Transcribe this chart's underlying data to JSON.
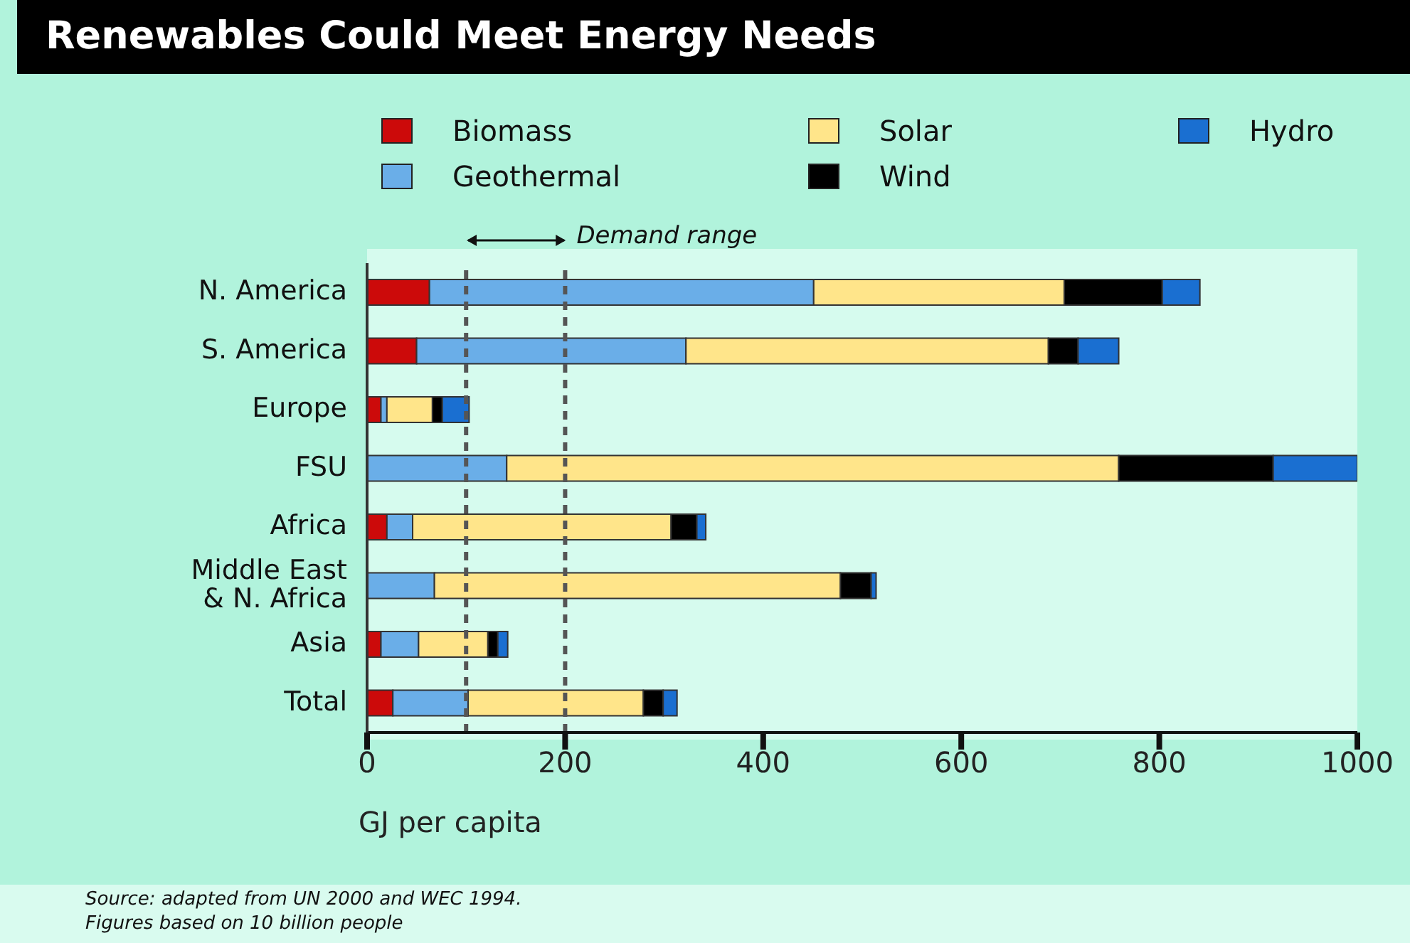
{
  "chart_data": {
    "type": "bar",
    "orientation": "horizontal",
    "stacked": true,
    "title": "Renewables Could Meet Energy Needs",
    "xlabel": "GJ per capita",
    "categories": [
      "N. America",
      "S. America",
      "Europe",
      "FSU",
      "Africa",
      "Middle East\n& N. Africa",
      "Asia",
      "Total"
    ],
    "series": [
      {
        "name": "Biomass",
        "color": "#cc0a0a",
        "values": [
          63,
          50,
          14,
          0,
          20,
          0,
          14,
          26
        ]
      },
      {
        "name": "Geothermal",
        "color": "#6aaee8",
        "values": [
          388,
          272,
          6,
          141,
          26,
          68,
          38,
          76
        ]
      },
      {
        "name": "Solar",
        "color": "#ffe58a",
        "values": [
          253,
          366,
          46,
          618,
          261,
          410,
          70,
          177
        ]
      },
      {
        "name": "Wind",
        "color": "#000000",
        "values": [
          99,
          30,
          10,
          156,
          26,
          31,
          10,
          20
        ]
      },
      {
        "name": "Hydro",
        "color": "#1a6fd1",
        "values": [
          38,
          41,
          27,
          85,
          9,
          5,
          10,
          14
        ]
      }
    ],
    "xlim": [
      0,
      1000
    ],
    "xticks": [
      0,
      200,
      400,
      600,
      800,
      1000
    ],
    "grid": false,
    "legend": "top",
    "ref_lines": [
      {
        "axis": "x",
        "value": 100,
        "label": null,
        "line_style": "dashed"
      },
      {
        "axis": "x",
        "value": 200,
        "label": null,
        "line_style": "dashed"
      }
    ],
    "annotations": [
      "Demand range",
      "Source: adapted from UN 2000 and WEC 1994.",
      "Figures based on 10 billion people"
    ]
  }
}
